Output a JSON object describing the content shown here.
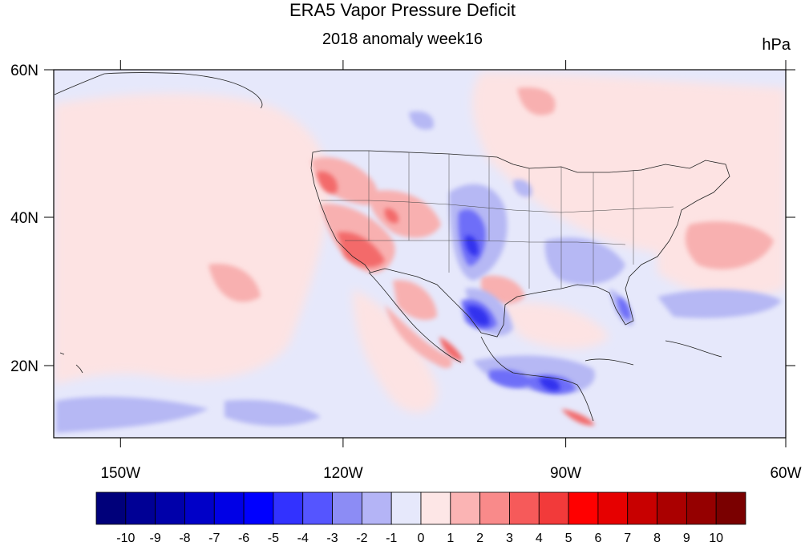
{
  "title": "ERA5 Vapor Pressure Deficit",
  "subtitle": "2018 anomaly week16",
  "units": "hPa",
  "map": {
    "projection": "lat-lon",
    "lon_range": [
      -160,
      -60
    ],
    "lat_range": [
      10,
      60
    ],
    "x_tick_labels": [
      "150W",
      "120W",
      "90W",
      "60W"
    ],
    "y_tick_labels": [
      "60N",
      "40N",
      "20N"
    ],
    "ocean_background": "#e6e8fb"
  },
  "colorbar": {
    "labels": [
      "-10",
      "-9",
      "-8",
      "-7",
      "-6",
      "-5",
      "-4",
      "-3",
      "-2",
      "-1",
      "0",
      "1",
      "2",
      "3",
      "4",
      "5",
      "6",
      "7",
      "8",
      "9",
      "10"
    ],
    "colors": [
      "#00007a",
      "#000095",
      "#0000aa",
      "#0000c8",
      "#0000e6",
      "#0000ff",
      "#3232ff",
      "#5555ff",
      "#8c8cf5",
      "#b4b4f6",
      "#e6e8fb",
      "#fde6e6",
      "#fbb4b4",
      "#f98a8a",
      "#f65a5a",
      "#f23a3a",
      "#ff0000",
      "#e60000",
      "#c80000",
      "#aa0000",
      "#950000",
      "#7a0000"
    ]
  }
}
